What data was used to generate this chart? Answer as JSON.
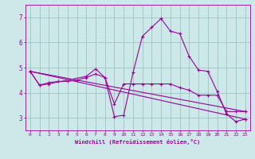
{
  "bg_color": "#cce8e8",
  "line_color": "#990099",
  "grid_color": "#99bbbb",
  "xlabel": "Windchill (Refroidissement éolien,°C)",
  "xlim": [
    -0.5,
    23.5
  ],
  "ylim": [
    2.5,
    7.5
  ],
  "yticks": [
    3,
    4,
    5,
    6,
    7
  ],
  "xticks": [
    0,
    1,
    2,
    3,
    4,
    5,
    6,
    7,
    8,
    9,
    10,
    11,
    12,
    13,
    14,
    15,
    16,
    17,
    18,
    19,
    20,
    21,
    22,
    23
  ],
  "lines": [
    {
      "x": [
        0,
        1,
        2,
        6,
        7,
        8,
        9,
        10,
        11,
        12,
        13,
        14,
        15,
        16,
        17,
        18,
        19,
        20,
        21,
        22,
        23
      ],
      "y": [
        4.85,
        4.3,
        4.35,
        4.65,
        4.95,
        4.6,
        3.05,
        3.1,
        4.8,
        6.25,
        6.6,
        6.95,
        6.45,
        6.35,
        5.45,
        4.9,
        4.85,
        4.05,
        3.15,
        2.85,
        2.95
      ]
    },
    {
      "x": [
        0,
        1,
        2,
        3,
        4,
        5,
        6,
        7,
        8,
        9,
        10,
        11,
        12,
        13,
        14,
        15,
        16,
        17,
        18,
        19,
        20,
        21,
        22,
        23
      ],
      "y": [
        4.85,
        4.3,
        4.4,
        4.45,
        4.45,
        4.5,
        4.6,
        4.75,
        4.6,
        3.55,
        4.35,
        4.35,
        4.35,
        4.35,
        4.35,
        4.35,
        4.2,
        4.1,
        3.9,
        3.9,
        3.9,
        3.25,
        3.25,
        3.25
      ]
    },
    {
      "x": [
        0,
        23
      ],
      "y": [
        4.85,
        3.25
      ]
    },
    {
      "x": [
        0,
        23
      ],
      "y": [
        4.85,
        2.95
      ]
    }
  ]
}
